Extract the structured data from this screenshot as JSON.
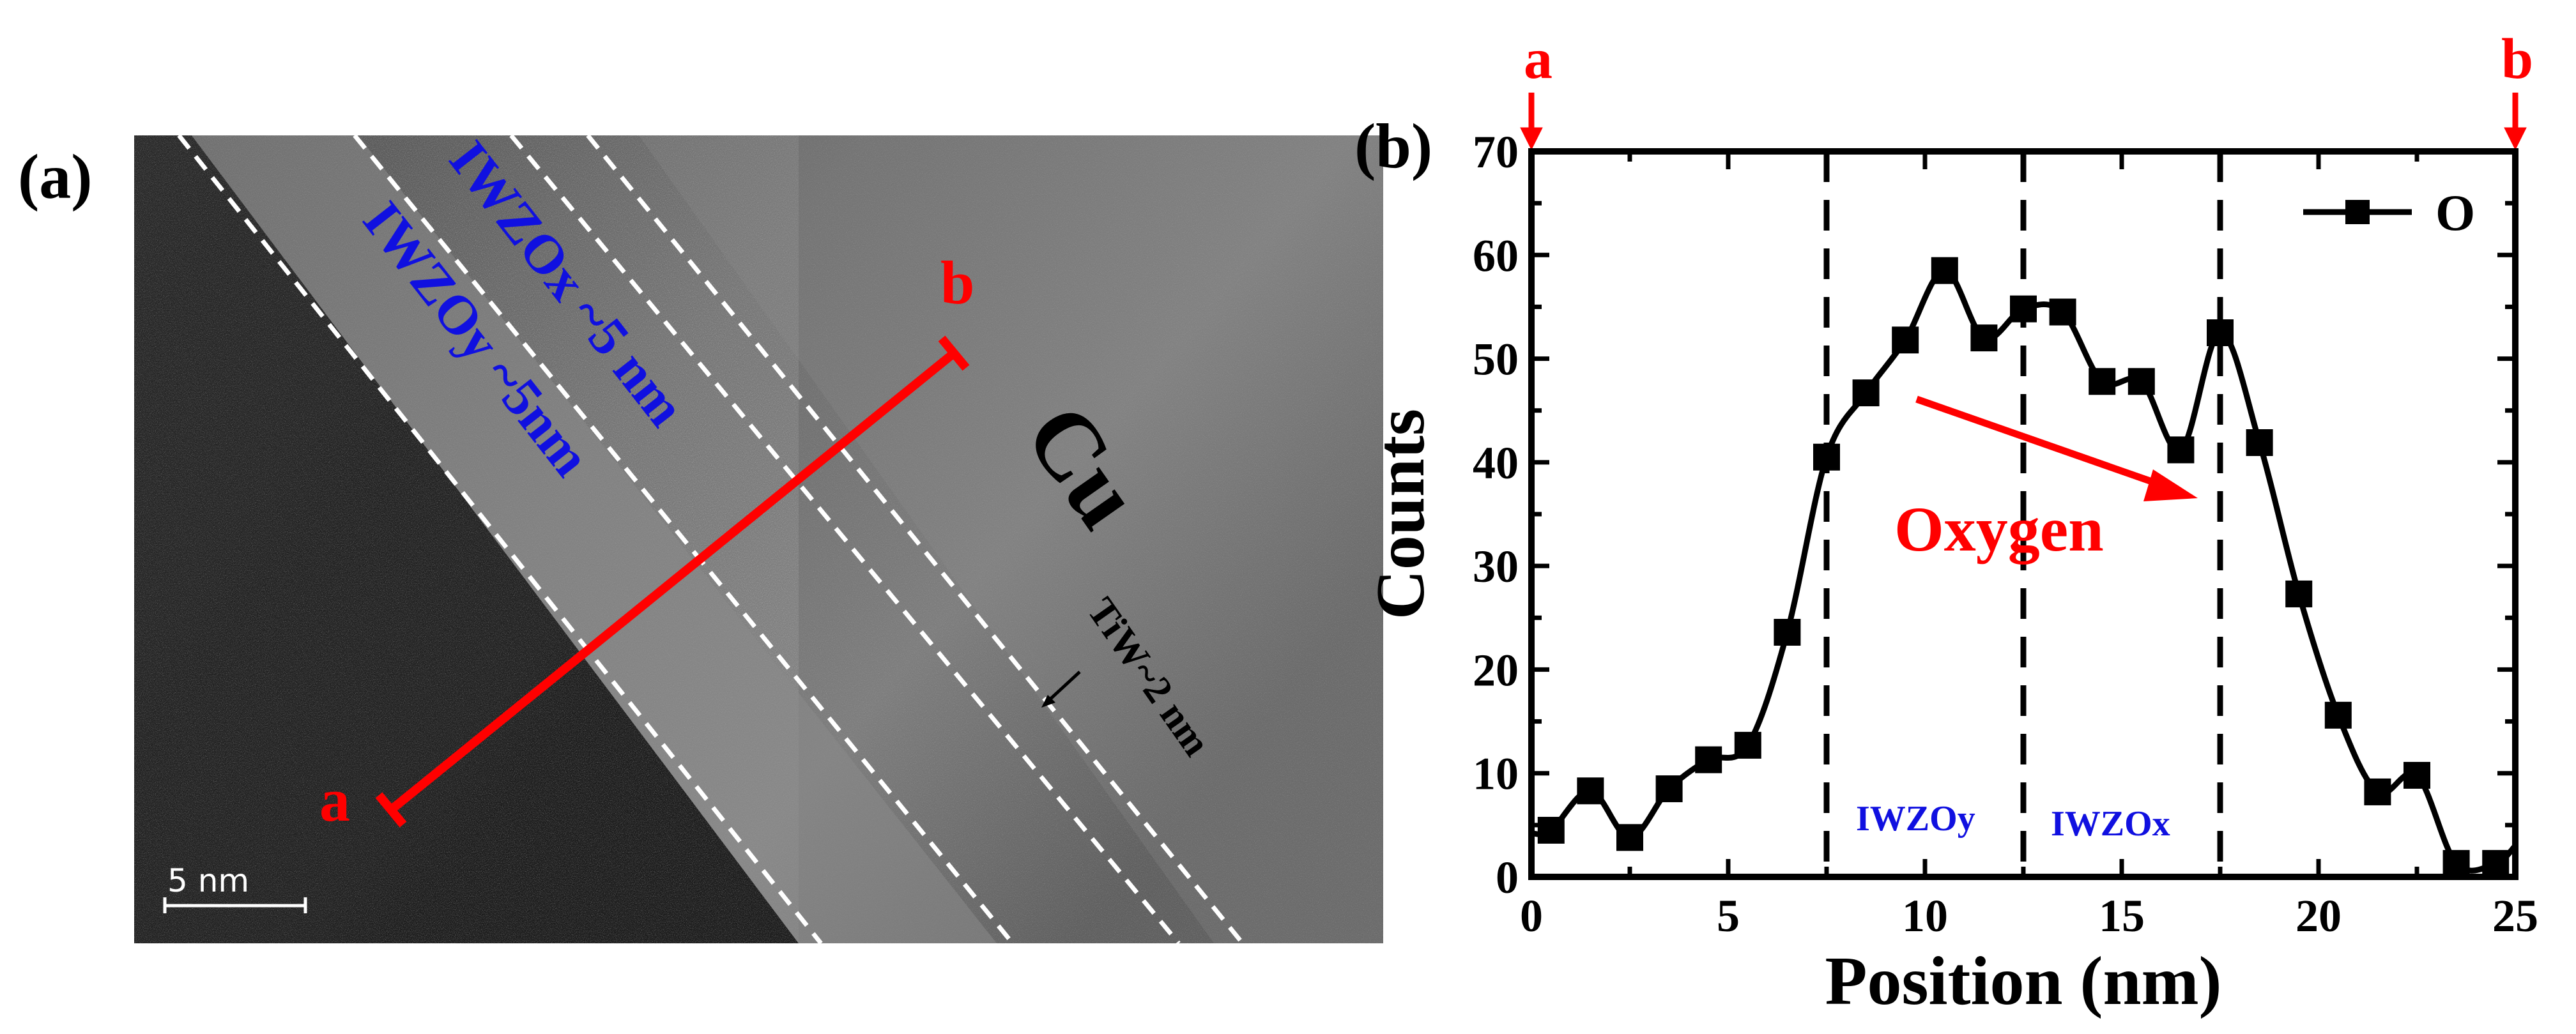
{
  "panel_a": {
    "label": "(a)",
    "point_a": "a",
    "point_b": "b",
    "layer_x": "IWZOx ~5 nm",
    "layer_y": "IWZOy ~5nm",
    "cu": "Cu",
    "tiw": "TiW~2 nm",
    "scale_bar": "5 nm",
    "colors": {
      "line": "#ff0000",
      "layer_text": "#1010e0",
      "dashed": "#ffffff"
    }
  },
  "panel_b": {
    "label": "(b)",
    "marker_a": "a",
    "marker_b": "b",
    "annotation": "Oxygen",
    "region_y": "IWZOy",
    "region_x": "IWZOx",
    "colors": {
      "data": "#000000",
      "annotation": "#ff0000",
      "region_text": "#1010e0"
    }
  },
  "chart_data": {
    "type": "scatter",
    "xlabel": "Position (nm)",
    "ylabel": "Counts",
    "xlim": [
      0,
      25
    ],
    "ylim": [
      0,
      70
    ],
    "xticks": [
      0,
      5,
      10,
      15,
      20,
      25
    ],
    "yticks": [
      0,
      10,
      20,
      30,
      40,
      50,
      60,
      70
    ],
    "vlines": [
      7.5,
      12.5,
      17.5
    ],
    "legend": {
      "position": "top-right",
      "entries": [
        "O"
      ]
    },
    "grid": false,
    "series": [
      {
        "name": "O",
        "marker": "square",
        "line": "smooth",
        "x": [
          0.5,
          1.5,
          2.5,
          3.5,
          4.5,
          5.5,
          6.5,
          7.5,
          8.5,
          9.5,
          10.5,
          11.5,
          12.5,
          13.5,
          14.5,
          15.5,
          16.5,
          17.5,
          18.5,
          19.5,
          20.5,
          21.5,
          22.5,
          23.5,
          24.5
        ],
        "y": [
          4.5,
          8.3,
          3.8,
          8.5,
          11.3,
          12.7,
          23.6,
          40.5,
          46.7,
          51.8,
          58.5,
          52.0,
          54.8,
          54.5,
          47.8,
          47.8,
          41.2,
          52.5,
          41.9,
          27.3,
          15.6,
          8.2,
          9.8,
          1.3,
          1.3
        ]
      }
    ]
  }
}
